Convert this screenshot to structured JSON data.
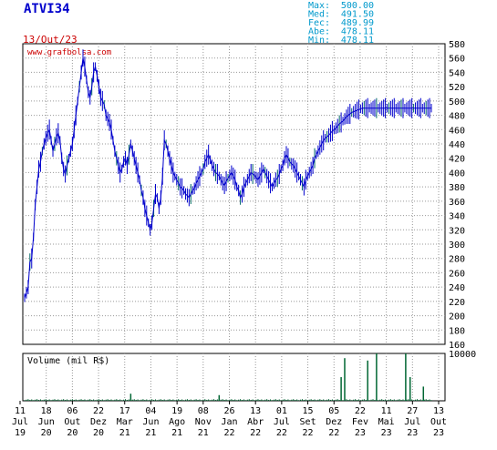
{
  "ticker": "ATVI34",
  "date": "13/Out/23",
  "watermark": "www.grafbolsa.com",
  "stats": [
    {
      "label": "Max:",
      "value": "500.00"
    },
    {
      "label": "Med:",
      "value": "491.50"
    },
    {
      "label": "Fec:",
      "value": "489.99"
    },
    {
      "label": "Abe:",
      "value": "478.11"
    },
    {
      "label": "Min:",
      "value": "478.11"
    }
  ],
  "colors": {
    "price": "#0000cc",
    "price_alt": "#006666",
    "volume": "#006633",
    "grid": "#999999",
    "title": "#0000cc",
    "date": "#cc0000",
    "stats": "#0099cc",
    "axis_text": "#000066"
  },
  "chart_data": [
    {
      "type": "line",
      "name": "price",
      "ylim": [
        160,
        580
      ],
      "yticks": [
        160,
        180,
        200,
        220,
        240,
        260,
        280,
        300,
        320,
        340,
        360,
        380,
        400,
        420,
        440,
        460,
        480,
        500,
        520,
        540,
        560,
        580
      ],
      "x_tick_labels": [
        {
          "day": "11",
          "month": "Jul",
          "year": "19"
        },
        {
          "day": "18",
          "month": "Jun",
          "year": "20"
        },
        {
          "day": "06",
          "month": "Out",
          "year": "20"
        },
        {
          "day": "22",
          "month": "Dez",
          "year": "20"
        },
        {
          "day": "17",
          "month": "Mar",
          "year": "21"
        },
        {
          "day": "04",
          "month": "Jun",
          "year": "21"
        },
        {
          "day": "19",
          "month": "Ago",
          "year": "21"
        },
        {
          "day": "08",
          "month": "Nov",
          "year": "21"
        },
        {
          "day": "26",
          "month": "Jan",
          "year": "22"
        },
        {
          "day": "13",
          "month": "Abr",
          "year": "22"
        },
        {
          "day": "01",
          "month": "Jul",
          "year": "22"
        },
        {
          "day": "15",
          "month": "Set",
          "year": "22"
        },
        {
          "day": "05",
          "month": "Dez",
          "year": "22"
        },
        {
          "day": "22",
          "month": "Fev",
          "year": "23"
        },
        {
          "day": "11",
          "month": "Mai",
          "year": "23"
        },
        {
          "day": "27",
          "month": "Jul",
          "year": "23"
        },
        {
          "day": "13",
          "month": "Out",
          "year": "23"
        }
      ],
      "x": [
        0,
        2,
        4,
        6,
        8,
        10,
        12,
        14,
        16,
        18,
        20,
        22,
        24,
        26,
        28,
        30,
        32,
        34,
        36,
        38,
        40,
        42,
        44,
        46,
        48,
        50,
        52,
        54,
        56,
        58,
        60,
        62,
        64,
        66,
        68,
        70,
        72,
        74,
        76,
        78,
        80,
        82,
        84,
        86,
        88,
        90,
        92,
        94,
        96,
        98,
        100,
        102,
        104,
        106,
        108,
        110,
        112,
        114,
        116,
        118,
        120,
        122,
        124,
        126,
        128,
        130,
        132,
        134,
        136,
        138,
        140,
        142,
        144,
        146,
        148,
        150,
        152,
        154,
        156,
        158,
        160,
        162,
        164,
        166,
        168,
        170,
        172,
        174,
        176,
        178,
        180,
        182,
        184,
        186,
        188,
        190,
        192,
        194,
        196,
        198,
        200,
        202,
        204,
        206,
        208,
        210,
        212,
        214,
        216,
        218,
        220,
        222,
        224,
        226,
        228,
        230,
        232,
        234,
        236,
        238,
        240,
        242,
        244,
        246,
        248,
        250,
        252,
        254,
        256,
        258,
        260,
        262,
        264,
        266,
        268,
        270,
        272,
        274,
        276,
        278,
        280,
        282,
        284,
        286,
        288,
        290,
        292,
        294,
        296,
        298,
        300,
        302,
        304,
        306,
        308,
        310,
        312,
        314,
        316,
        318,
        320,
        322,
        324,
        326,
        328,
        330,
        332,
        334,
        336,
        338,
        340,
        342,
        344,
        346,
        348,
        350,
        352,
        354,
        356,
        358,
        360,
        362,
        364,
        366,
        368,
        370,
        372,
        374,
        376,
        378,
        380,
        382,
        384,
        386,
        388,
        390,
        392,
        394,
        396,
        398,
        400,
        402,
        404,
        406,
        408,
        410,
        412,
        414,
        416,
        418,
        420,
        422,
        424,
        426,
        428,
        430,
        432,
        434,
        436,
        438,
        440,
        442,
        444,
        446,
        448,
        450,
        452,
        454,
        456,
        458,
        460
      ],
      "y": [
        225,
        232,
        240,
        275,
        280,
        310,
        355,
        380,
        405,
        415,
        430,
        440,
        448,
        455,
        460,
        445,
        430,
        440,
        450,
        455,
        445,
        420,
        405,
        398,
        410,
        420,
        430,
        440,
        460,
        480,
        500,
        520,
        540,
        560,
        548,
        530,
        512,
        505,
        520,
        540,
        548,
        535,
        520,
        505,
        500,
        495,
        480,
        475,
        470,
        460,
        445,
        430,
        420,
        410,
        400,
        405,
        415,
        420,
        410,
        425,
        440,
        430,
        420,
        410,
        400,
        390,
        375,
        365,
        350,
        340,
        330,
        320,
        330,
        350,
        370,
        365,
        350,
        365,
        395,
        445,
        440,
        430,
        420,
        410,
        400,
        395,
        390,
        385,
        380,
        378,
        375,
        370,
        368,
        365,
        370,
        375,
        378,
        385,
        390,
        395,
        400,
        405,
        415,
        420,
        425,
        418,
        410,
        405,
        400,
        398,
        395,
        390,
        385,
        382,
        388,
        392,
        396,
        400,
        395,
        390,
        380,
        375,
        365,
        370,
        380,
        385,
        390,
        395,
        400,
        398,
        396,
        393,
        390,
        395,
        400,
        405,
        400,
        395,
        390,
        385,
        380,
        385,
        390,
        392,
        398,
        405,
        410,
        420,
        425,
        420,
        415,
        412,
        410,
        405,
        400,
        395,
        390,
        385,
        380,
        390,
        395,
        400,
        405,
        410,
        420,
        425,
        430,
        435,
        440,
        445,
        448,
        450,
        452,
        455,
        458,
        460,
        462,
        465,
        468,
        470,
        472,
        475,
        478,
        480,
        482,
        484,
        485,
        486,
        487,
        488,
        489,
        490,
        490,
        490,
        490,
        490,
        490,
        490,
        490,
        490,
        490,
        490,
        490,
        490,
        490,
        490,
        490,
        490,
        490,
        490,
        490,
        490,
        490,
        490,
        490,
        490,
        490,
        490,
        490,
        490,
        490,
        490,
        490,
        490,
        490,
        490,
        490,
        490,
        490,
        490,
        490
      ]
    },
    {
      "type": "bar",
      "name": "volume",
      "title": "Volume (mil R$)",
      "ylim": [
        0,
        10000
      ],
      "yticks": [
        10000
      ],
      "spikes": [
        {
          "x": 120,
          "value": 1500
        },
        {
          "x": 220,
          "value": 1200
        },
        {
          "x": 358,
          "value": 5000
        },
        {
          "x": 362,
          "value": 9000
        },
        {
          "x": 388,
          "value": 8500
        },
        {
          "x": 398,
          "value": 10000
        },
        {
          "x": 431,
          "value": 10000
        },
        {
          "x": 436,
          "value": 5000
        },
        {
          "x": 451,
          "value": 3000
        }
      ],
      "baseline": 250
    }
  ]
}
